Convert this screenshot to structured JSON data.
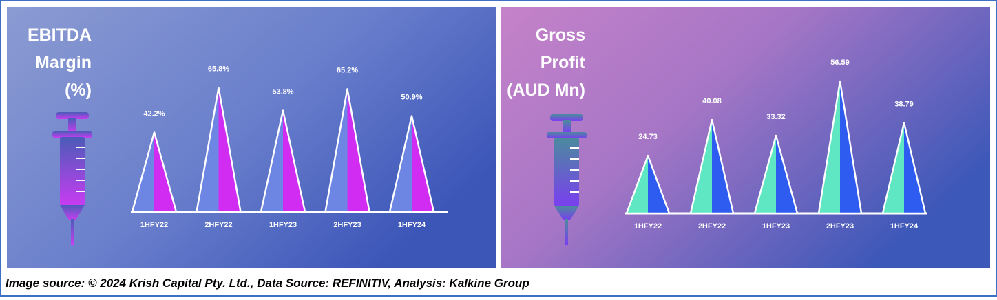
{
  "chart_data": [
    {
      "type": "bar",
      "title": [
        "EBITDA",
        "Margin",
        "(%)"
      ],
      "categories": [
        "1HFY22",
        "2HFY22",
        "1HFY23",
        "2HFY23",
        "1HFY24"
      ],
      "values": [
        42.2,
        65.8,
        53.8,
        65.2,
        50.9
      ],
      "value_labels": [
        "42.2%",
        "65.8%",
        "53.8%",
        "65.2%",
        "50.9%"
      ],
      "colors": [
        "#6d86e4",
        "#d12cf2"
      ]
    },
    {
      "type": "bar",
      "title": [
        "Gross",
        "Profit",
        "(AUD Mn)"
      ],
      "categories": [
        "1HFY22",
        "2HFY22",
        "1HFY23",
        "2HFY23",
        "1HFY24"
      ],
      "values": [
        24.73,
        40.08,
        33.32,
        56.59,
        38.79
      ],
      "colors": [
        "#5fe6c2",
        "#2f5cf0"
      ]
    }
  ],
  "footer": "Image source: © 2024 Krish Capital Pty. Ltd., Data Source: REFINITIV, Analysis: Kalkine Group"
}
